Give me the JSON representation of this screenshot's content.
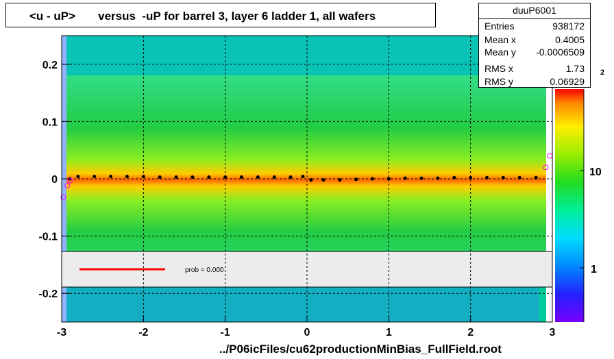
{
  "title": "<u - uP>       versus  -uP for barrel 3, layer 6 ladder 1, all wafers",
  "footer": "../P06icFiles/cu62productionMinBias_FullField.root",
  "stats": {
    "name": "duuP6001",
    "rows": [
      {
        "label": "Entries",
        "value": "938172"
      },
      {
        "label": "Mean x",
        "value": "0.4005"
      },
      {
        "label": "Mean y",
        "value": "-0.0006509"
      },
      {
        "label": "RMS x",
        "value": "1.73"
      },
      {
        "label": "RMS y",
        "value": "0.06929"
      }
    ]
  },
  "legend": {
    "fit_label": "prob = 0.000",
    "line_color": "#ff0000"
  },
  "colorbar": {
    "tick_labels": [
      "1",
      "10"
    ],
    "top_exponent": "2",
    "scale": "log"
  },
  "colors": {
    "profile_markers": "#000000",
    "fit_markers": "#ff00ff",
    "fit_line": "#ff0000"
  },
  "chart_data": {
    "type": "heatmap",
    "title": "<u - uP>       versus  -uP for barrel 3, layer 6 ladder 1, all wafers",
    "xlabel": "",
    "ylabel": "",
    "xlim": [
      -3,
      3
    ],
    "ylim": [
      -0.25,
      0.25
    ],
    "x_ticks": [
      "-3",
      "-2",
      "-1",
      "0",
      "1",
      "2",
      "3"
    ],
    "y_ticks": [
      "-0.2",
      "-0.1",
      "0",
      "0.1",
      "0.2"
    ],
    "y_tick_values": [
      -0.2,
      -0.1,
      0,
      0.1,
      0.2
    ],
    "grid": true,
    "profile": {
      "x": [
        -2.9,
        -2.8,
        -2.6,
        -2.4,
        -2.2,
        -2.0,
        -1.8,
        -1.6,
        -1.4,
        -1.2,
        -1.0,
        -0.8,
        -0.6,
        -0.4,
        -0.2,
        -0.05,
        0.05,
        0.2,
        0.4,
        0.6,
        0.8,
        1.0,
        1.2,
        1.4,
        1.6,
        1.8,
        2.0,
        2.2,
        2.4,
        2.6,
        2.8
      ],
      "y": [
        0.0,
        0.004,
        0.004,
        0.004,
        0.004,
        0.004,
        0.003,
        0.003,
        0.003,
        0.003,
        0.003,
        0.003,
        0.003,
        0.003,
        0.003,
        0.004,
        -0.002,
        -0.002,
        -0.002,
        -0.001,
        0.0,
        0.0,
        0.001,
        0.001,
        0.001,
        0.002,
        0.002,
        0.002,
        0.002,
        0.002,
        0.002
      ]
    },
    "fit_points": {
      "x": [
        -2.98,
        -2.93,
        -2.9,
        2.92,
        2.97
      ],
      "y": [
        -0.032,
        -0.012,
        -0.003,
        0.02,
        0.04
      ]
    }
  }
}
